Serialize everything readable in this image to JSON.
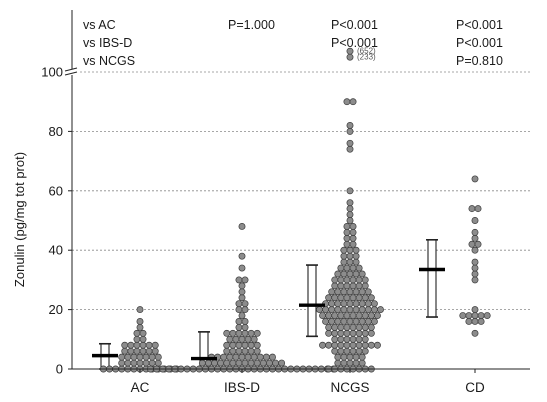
{
  "chart_data": {
    "type": "scatter",
    "subtype": "dot-plot with median and interquartile boxes",
    "ylabel": "Zonulin (pg/mg tot prot)",
    "ylim": [
      0,
      100
    ],
    "ytick_values": [
      0,
      20,
      40,
      60,
      80,
      100
    ],
    "ytick_labels": [
      "0",
      "20",
      "40",
      "60",
      "80",
      "100"
    ],
    "axis_break_at": 100,
    "grid": "horizontal dashed",
    "categories": [
      "AC",
      "IBS-D",
      "NCGS",
      "CD"
    ],
    "marker_color": "#8c8c8c",
    "groups": [
      {
        "name": "AC",
        "median": 4.5,
        "q1": 0,
        "q3": 8.5,
        "values": [
          0,
          0,
          0,
          0,
          0,
          0,
          0,
          0,
          0,
          0,
          0,
          0,
          0,
          2,
          2,
          2,
          2,
          2,
          2,
          2,
          4,
          4,
          4,
          4,
          4,
          4,
          4,
          6,
          6,
          6,
          6,
          6,
          6,
          8,
          8,
          8,
          8,
          8,
          8,
          10,
          10,
          12,
          12,
          14,
          16,
          20
        ]
      },
      {
        "name": "IBS-D",
        "median": 3.5,
        "q1": 0,
        "q3": 12.5,
        "values": [
          0,
          0,
          0,
          0,
          0,
          0,
          0,
          0,
          0,
          0,
          0,
          0,
          0,
          0,
          0,
          0,
          0,
          0,
          0,
          0,
          0,
          0,
          0,
          0,
          0,
          0,
          0,
          0,
          0,
          0,
          0,
          2,
          2,
          2,
          2,
          2,
          2,
          2,
          2,
          2,
          2,
          2,
          2,
          2,
          2,
          4,
          4,
          4,
          4,
          4,
          4,
          4,
          4,
          4,
          4,
          4,
          6,
          6,
          6,
          6,
          6,
          6,
          8,
          8,
          8,
          8,
          8,
          8,
          10,
          10,
          10,
          10,
          10,
          12,
          12,
          12,
          12,
          12,
          12,
          14,
          14,
          16,
          16,
          18,
          20,
          20,
          22,
          22,
          24,
          26,
          28,
          30,
          30,
          34,
          38,
          48
        ]
      },
      {
        "name": "NCGS",
        "median": 21.5,
        "q1": 11,
        "q3": 35,
        "values": [
          0,
          0,
          0,
          0,
          0,
          0,
          0,
          0,
          2,
          2,
          2,
          2,
          2,
          4,
          4,
          4,
          4,
          4,
          6,
          6,
          6,
          6,
          6,
          6,
          8,
          8,
          8,
          8,
          8,
          8,
          8,
          8,
          8,
          8,
          10,
          10,
          10,
          10,
          10,
          10,
          12,
          12,
          12,
          12,
          12,
          12,
          12,
          12,
          14,
          14,
          14,
          14,
          14,
          14,
          14,
          14,
          16,
          16,
          16,
          16,
          16,
          16,
          16,
          16,
          16,
          18,
          18,
          18,
          18,
          18,
          18,
          18,
          18,
          18,
          18,
          20,
          20,
          20,
          20,
          20,
          20,
          20,
          20,
          20,
          20,
          20,
          22,
          22,
          22,
          22,
          22,
          22,
          22,
          22,
          22,
          24,
          24,
          24,
          24,
          24,
          24,
          24,
          24,
          26,
          26,
          26,
          26,
          26,
          26,
          26,
          28,
          28,
          28,
          28,
          28,
          28,
          30,
          30,
          30,
          30,
          30,
          30,
          32,
          32,
          32,
          32,
          32,
          34,
          34,
          34,
          34,
          36,
          36,
          36,
          38,
          38,
          38,
          40,
          40,
          40,
          42,
          42,
          44,
          44,
          46,
          46,
          48,
          48,
          50,
          52,
          54,
          56,
          60,
          74,
          76,
          80,
          82,
          90,
          90,
          105,
          107
        ],
        "outliers_above_scale": [
          {
            "plotted_at": 107,
            "label": "(652)"
          },
          {
            "plotted_at": 105,
            "label": "(233)"
          }
        ]
      },
      {
        "name": "CD",
        "median": 33.5,
        "q1": 17.5,
        "q3": 43.5,
        "values": [
          12,
          16,
          16,
          16,
          18,
          18,
          18,
          18,
          18,
          20,
          30,
          32,
          34,
          36,
          40,
          42,
          42,
          44,
          46,
          50,
          54,
          54,
          64
        ]
      }
    ],
    "comparisons": {
      "row_labels": [
        "vs AC",
        "vs IBS-D",
        "vs NCGS"
      ],
      "by_group": {
        "IBS-D": [
          "P=1.000",
          "",
          ""
        ],
        "NCGS": [
          "P<0.001",
          "P<0.001",
          ""
        ],
        "CD": [
          "P<0.001",
          "P<0.001",
          "P=0.810"
        ]
      }
    }
  }
}
